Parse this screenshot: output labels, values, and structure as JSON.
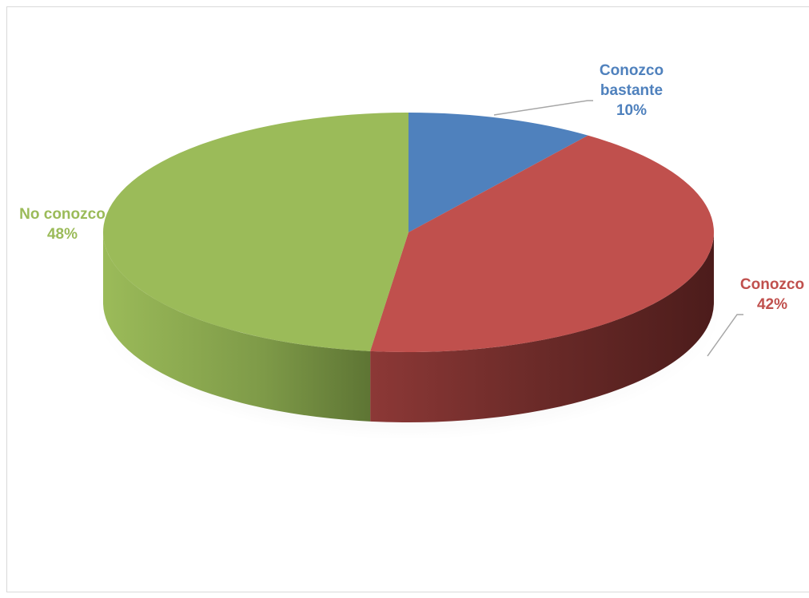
{
  "chart_data": {
    "type": "pie",
    "style": "3d",
    "title": "",
    "slices": [
      {
        "label_lines": [
          "Conozco",
          "bastante"
        ],
        "value": 10,
        "percent_label": "10%",
        "color": "#4F81BD"
      },
      {
        "label_lines": [
          "Conozco"
        ],
        "value": 42,
        "percent_label": "42%",
        "color": "#C0504D"
      },
      {
        "label_lines": [
          "No conozco"
        ],
        "value": 48,
        "percent_label": "48%",
        "color": "#9BBB59"
      }
    ],
    "legend": "none"
  }
}
